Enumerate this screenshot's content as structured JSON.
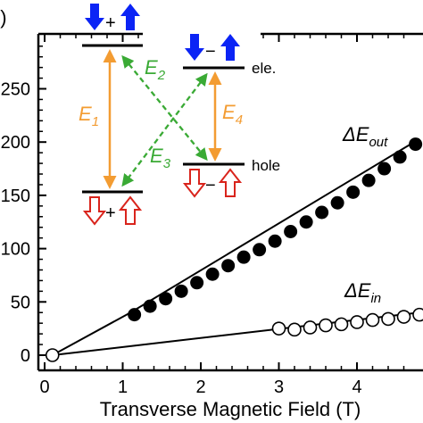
{
  "chart_data": {
    "type": "scatter",
    "panel_label": "b)",
    "xlabel": "Transverse Magnetic Field (T)",
    "ylabel": "",
    "xlim": [
      0,
      4.8
    ],
    "ylim": [
      0,
      300
    ],
    "x_ticks": [
      0,
      1,
      2,
      3,
      4
    ],
    "y_ticks": [
      0,
      50,
      100,
      150,
      200,
      250
    ],
    "grid": false,
    "series": [
      {
        "name": "ΔE_out",
        "label_main": "ΔE",
        "label_sub": "out",
        "marker": "filled-circle",
        "x": [
          1.15,
          1.35,
          1.55,
          1.75,
          1.95,
          2.15,
          2.35,
          2.55,
          2.75,
          2.95,
          3.15,
          3.35,
          3.55,
          3.75,
          3.95,
          4.15,
          4.35,
          4.55,
          4.75
        ],
        "y": [
          38,
          46,
          53,
          60,
          68,
          76,
          84,
          92,
          99,
          107,
          116,
          125,
          134,
          143,
          153,
          164,
          175,
          186,
          198
        ],
        "fit_line": {
          "x": [
            0.1,
            1.1,
            4.8
          ],
          "y": [
            0,
            40,
            203
          ]
        }
      },
      {
        "name": "ΔE_in",
        "label_main": "ΔE",
        "label_sub": "in",
        "marker": "open-circle",
        "x": [
          3.0,
          3.2,
          3.4,
          3.6,
          3.8,
          4.0,
          4.2,
          4.4,
          4.6,
          4.8
        ],
        "y": [
          25,
          24,
          26,
          28,
          29,
          31,
          33,
          34,
          36,
          38
        ],
        "fit_line": {
          "x": [
            0.1,
            4.8
          ],
          "y": [
            0,
            40
          ]
        }
      },
      {
        "name": "origin",
        "marker": "open-circle",
        "x": [
          0.1
        ],
        "y": [
          0
        ]
      }
    ],
    "inset": {
      "levels": [
        {
          "id": "top-left",
          "spins": "↓+↑"
        },
        {
          "id": "top-right",
          "spins": "↓−↑",
          "label": "ele."
        },
        {
          "id": "bottom-right",
          "spins": "⇩−⇧",
          "label": "hole"
        },
        {
          "id": "bottom-left",
          "spins": "⇩+⇧"
        }
      ],
      "transitions": [
        {
          "name": "E",
          "sub": "1",
          "style": "solid",
          "color": "#f39c32"
        },
        {
          "name": "E",
          "sub": "2",
          "style": "dashed",
          "color": "#3aaa35"
        },
        {
          "name": "E",
          "sub": "3",
          "style": "dashed",
          "color": "#3aaa35"
        },
        {
          "name": "E",
          "sub": "4",
          "style": "solid",
          "color": "#f39c32"
        }
      ],
      "colors": {
        "electron_spin": "#0b24f5",
        "hole_spin": "#d9241c",
        "solid_transition": "#f39c32",
        "dashed_transition": "#3aaa35"
      }
    }
  }
}
